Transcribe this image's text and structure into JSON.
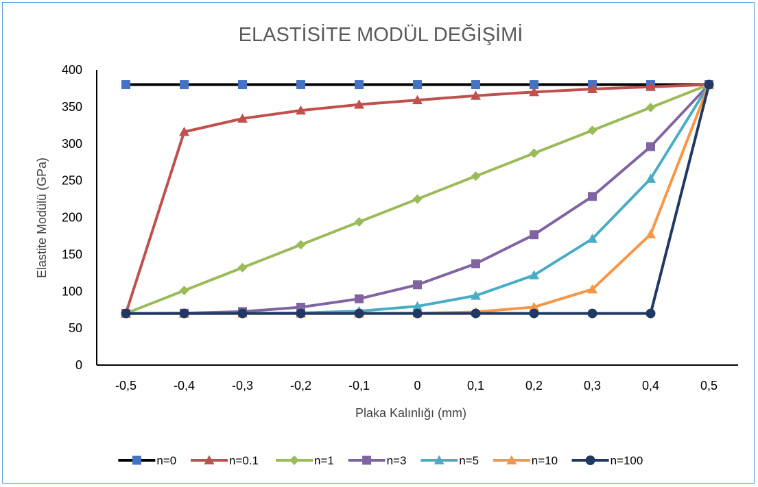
{
  "chart_data": {
    "type": "line",
    "title": "ELASTİSİTE MODÜL DEĞİŞİMİ",
    "xlabel": "Plaka Kalınlığı (mm)",
    "ylabel": "Elastite Modülü (GPa)",
    "categories": [
      "-0,5",
      "-0,4",
      "-0,3",
      "-0,2",
      "-0,1",
      "0",
      "0,1",
      "0,2",
      "0,3",
      "0,4",
      "0,5"
    ],
    "ylim": [
      0,
      400
    ],
    "yticks": [
      "0",
      "50",
      "100",
      "150",
      "200",
      "250",
      "300",
      "350",
      "400"
    ],
    "grid": false,
    "legend_position": "bottom",
    "series": [
      {
        "name": "n=0",
        "color": "#000000",
        "marker_color": "#4472c4",
        "marker": "square",
        "values": [
          380,
          380,
          380,
          380,
          380,
          380,
          380,
          380,
          380,
          380,
          380
        ]
      },
      {
        "name": "n=0.1",
        "color": "#c0504d",
        "marker_color": "#c0504d",
        "marker": "triangle",
        "values": [
          70,
          316,
          334,
          345,
          353,
          359,
          365,
          370,
          374,
          377,
          380
        ]
      },
      {
        "name": "n=1",
        "color": "#9bbb59",
        "marker_color": "#9bbb59",
        "marker": "diamond",
        "values": [
          70,
          101,
          132,
          163,
          194,
          225,
          256,
          287,
          318,
          349,
          380
        ]
      },
      {
        "name": "n=3",
        "color": "#8064a2",
        "marker_color": "#8064a2",
        "marker": "square",
        "values": [
          70,
          70.3,
          72.5,
          78.4,
          89.8,
          108.8,
          137.4,
          176.6,
          228.5,
          296,
          380
        ]
      },
      {
        "name": "n=5",
        "color": "#4bacc6",
        "marker_color": "#4bacc6",
        "marker": "triangle",
        "values": [
          70,
          70,
          70.1,
          70.7,
          73.1,
          79.7,
          94.1,
          121.8,
          171.1,
          252.6,
          380
        ]
      },
      {
        "name": "n=10",
        "color": "#f79646",
        "marker_color": "#f79646",
        "marker": "triangle",
        "values": [
          70,
          70,
          70,
          70,
          70,
          70.3,
          71.9,
          78.6,
          102.7,
          177.3,
          380
        ]
      },
      {
        "name": "n=100",
        "color": "#1f3864",
        "marker_color": "#1f3864",
        "marker": "circle",
        "values": [
          70,
          70,
          70,
          70,
          70,
          70,
          70,
          70,
          70,
          70,
          380
        ]
      }
    ]
  }
}
